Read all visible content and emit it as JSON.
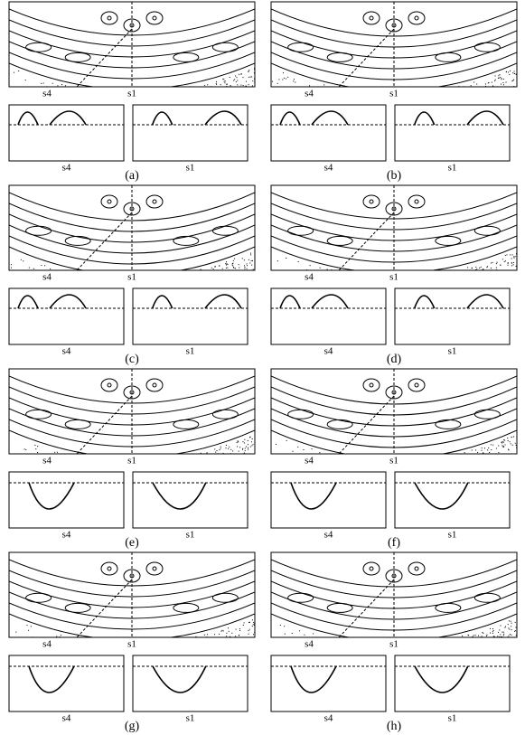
{
  "panels": [
    {
      "top_labels": [
        "s4",
        "s1"
      ],
      "bottom_labels": [
        "s4",
        "s1"
      ],
      "caption": "(a)"
    },
    {
      "top_labels": [
        "s4",
        "s1"
      ],
      "bottom_labels": [
        "s4",
        "s1"
      ],
      "caption": "(b)"
    },
    {
      "top_labels": [
        "s4",
        "s1"
      ],
      "bottom_labels": [
        "s4",
        "s1"
      ],
      "caption": "(c)"
    },
    {
      "top_labels": [
        "s4",
        "s1"
      ],
      "bottom_labels": [
        "s4",
        "s1"
      ],
      "caption": "(d)"
    },
    {
      "top_labels": [
        "s4",
        "s1"
      ],
      "bottom_labels": [
        "s4",
        "s1"
      ],
      "caption": "(e)"
    },
    {
      "top_labels": [
        "s4",
        "s1"
      ],
      "bottom_labels": [
        "s4",
        "s1"
      ],
      "caption": "(f)"
    },
    {
      "top_labels": [
        "s4",
        "s1"
      ],
      "bottom_labels": [
        "s4",
        "s1"
      ],
      "caption": "(g)"
    },
    {
      "top_labels": [
        "s4",
        "s1"
      ],
      "bottom_labels": [
        "s4",
        "s1"
      ],
      "caption": "(h)"
    }
  ]
}
